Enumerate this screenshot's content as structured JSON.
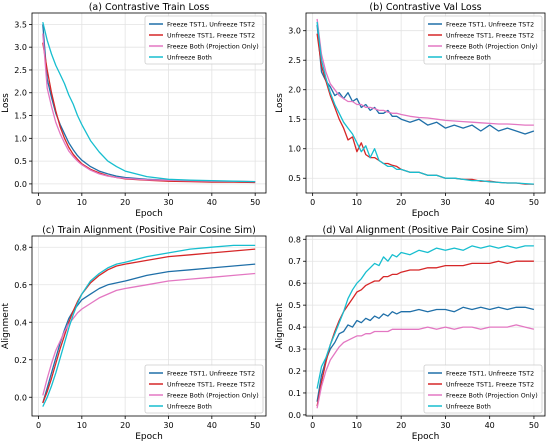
{
  "colors": {
    "series": [
      "#1f6fa8",
      "#d62728",
      "#e377c2",
      "#17becf"
    ],
    "grid": "#e3e3e3",
    "axis": "#000000"
  },
  "chart_data": [
    {
      "type": "line",
      "title": "(a) Contrastive Train Loss",
      "xlabel": "Epoch",
      "ylabel": "Loss",
      "xlim": [
        -1.5,
        52.5
      ],
      "ylim": [
        -0.2,
        3.75
      ],
      "xticks": [
        0,
        10,
        20,
        30,
        40,
        50
      ],
      "yticks": [
        0.0,
        0.5,
        1.0,
        1.5,
        2.0,
        2.5,
        3.0,
        3.5
      ],
      "ytick_labels": [
        "0.0",
        "0.5",
        "1.0",
        "1.5",
        "2.0",
        "2.5",
        "3.0",
        "3.5"
      ],
      "grid": true,
      "legend_position": "top-right",
      "x": [
        1,
        2,
        3,
        4,
        5,
        6,
        7,
        8,
        9,
        10,
        12,
        14,
        16,
        18,
        20,
        25,
        30,
        35,
        40,
        45,
        50
      ],
      "series": [
        {
          "name": "Freeze TST1, Unfreeze TST2",
          "values": [
            3.5,
            2.3,
            1.9,
            1.55,
            1.3,
            1.1,
            0.9,
            0.75,
            0.62,
            0.52,
            0.38,
            0.28,
            0.22,
            0.17,
            0.14,
            0.1,
            0.08,
            0.07,
            0.06,
            0.05,
            0.05
          ]
        },
        {
          "name": "Unfreeze TST1, Freeze TST2",
          "values": [
            3.1,
            2.5,
            2.0,
            1.6,
            1.25,
            1.0,
            0.8,
            0.65,
            0.54,
            0.44,
            0.32,
            0.24,
            0.18,
            0.14,
            0.11,
            0.08,
            0.06,
            0.05,
            0.04,
            0.04,
            0.03
          ]
        },
        {
          "name": "Freeze Both (Projection Only)",
          "values": [
            3.3,
            2.1,
            1.7,
            1.35,
            1.1,
            0.9,
            0.72,
            0.6,
            0.5,
            0.42,
            0.3,
            0.22,
            0.17,
            0.14,
            0.12,
            0.09,
            0.08,
            0.07,
            0.06,
            0.06,
            0.05
          ]
        },
        {
          "name": "Unfreeze Both",
          "values": [
            3.55,
            3.15,
            2.85,
            2.6,
            2.4,
            2.2,
            1.95,
            1.75,
            1.5,
            1.3,
            0.95,
            0.7,
            0.5,
            0.38,
            0.28,
            0.16,
            0.1,
            0.08,
            0.07,
            0.06,
            0.05
          ]
        }
      ]
    },
    {
      "type": "line",
      "title": "(b) Contrastive Val Loss",
      "xlabel": "Epoch",
      "ylabel": "Loss",
      "xlim": [
        -1.5,
        52.5
      ],
      "ylim": [
        0.25,
        3.3
      ],
      "xticks": [
        0,
        10,
        20,
        30,
        40,
        50
      ],
      "yticks": [
        0.5,
        1.0,
        1.5,
        2.0,
        2.5,
        3.0
      ],
      "ytick_labels": [
        "0.5",
        "1.0",
        "1.5",
        "2.0",
        "2.5",
        "3.0"
      ],
      "grid": true,
      "legend_position": "top-right",
      "x": [
        1,
        2,
        3,
        4,
        5,
        6,
        7,
        8,
        9,
        10,
        11,
        12,
        13,
        14,
        15,
        16,
        17,
        18,
        19,
        20,
        22,
        24,
        26,
        28,
        30,
        32,
        34,
        36,
        38,
        40,
        42,
        44,
        46,
        48,
        50
      ],
      "series": [
        {
          "name": "Freeze TST1, Unfreeze TST2",
          "values": [
            3.1,
            2.3,
            2.15,
            2.05,
            1.9,
            1.95,
            1.85,
            1.95,
            1.8,
            1.85,
            1.7,
            1.75,
            1.65,
            1.7,
            1.6,
            1.6,
            1.65,
            1.55,
            1.55,
            1.5,
            1.45,
            1.5,
            1.4,
            1.45,
            1.35,
            1.4,
            1.35,
            1.4,
            1.3,
            1.4,
            1.3,
            1.35,
            1.3,
            1.25,
            1.3
          ]
        },
        {
          "name": "Unfreeze TST1, Freeze TST2",
          "values": [
            2.95,
            2.4,
            2.15,
            1.9,
            1.7,
            1.5,
            1.35,
            1.15,
            1.2,
            0.95,
            1.1,
            0.9,
            0.85,
            0.85,
            0.8,
            0.75,
            0.75,
            0.72,
            0.7,
            0.65,
            0.6,
            0.6,
            0.55,
            0.55,
            0.5,
            0.5,
            0.48,
            0.48,
            0.45,
            0.45,
            0.43,
            0.42,
            0.42,
            0.4,
            0.4
          ]
        },
        {
          "name": "Freeze Both (Projection Only)",
          "values": [
            3.2,
            2.6,
            2.3,
            2.1,
            2.0,
            1.9,
            1.85,
            1.8,
            1.8,
            1.75,
            1.75,
            1.7,
            1.7,
            1.68,
            1.65,
            1.65,
            1.62,
            1.6,
            1.6,
            1.58,
            1.55,
            1.53,
            1.52,
            1.5,
            1.48,
            1.47,
            1.46,
            1.45,
            1.44,
            1.43,
            1.42,
            1.42,
            1.41,
            1.4,
            1.4
          ]
        },
        {
          "name": "Unfreeze Both",
          "values": [
            3.15,
            2.5,
            2.2,
            1.95,
            1.75,
            1.6,
            1.45,
            1.35,
            1.25,
            1.1,
            0.95,
            1.05,
            0.85,
            1.0,
            0.8,
            0.75,
            0.7,
            0.7,
            0.65,
            0.65,
            0.6,
            0.6,
            0.55,
            0.55,
            0.5,
            0.5,
            0.48,
            0.46,
            0.46,
            0.44,
            0.43,
            0.42,
            0.42,
            0.41,
            0.4
          ]
        }
      ]
    },
    {
      "type": "line",
      "title": "(c) Train Alignment (Positive Pair Cosine Sim)",
      "xlabel": "Epoch",
      "ylabel": "Alignment",
      "xlim": [
        -1.5,
        52.5
      ],
      "ylim": [
        -0.1,
        0.86
      ],
      "xticks": [
        0,
        10,
        20,
        30,
        40,
        50
      ],
      "yticks": [
        0.0,
        0.2,
        0.4,
        0.6,
        0.8
      ],
      "ytick_labels": [
        "0.0",
        "0.2",
        "0.4",
        "0.6",
        "0.8"
      ],
      "grid": true,
      "legend_position": "bottom-right",
      "x": [
        1,
        2,
        3,
        4,
        5,
        6,
        7,
        8,
        9,
        10,
        12,
        14,
        16,
        18,
        20,
        25,
        30,
        35,
        40,
        45,
        50
      ],
      "series": [
        {
          "name": "Freeze TST1, Unfreeze TST2",
          "values": [
            -0.03,
            0.05,
            0.13,
            0.21,
            0.29,
            0.36,
            0.42,
            0.46,
            0.49,
            0.52,
            0.55,
            0.58,
            0.6,
            0.61,
            0.62,
            0.65,
            0.67,
            0.68,
            0.69,
            0.7,
            0.71
          ]
        },
        {
          "name": "Unfreeze TST1, Freeze TST2",
          "values": [
            -0.03,
            0.03,
            0.1,
            0.18,
            0.26,
            0.33,
            0.4,
            0.46,
            0.51,
            0.55,
            0.61,
            0.65,
            0.68,
            0.7,
            0.71,
            0.73,
            0.75,
            0.76,
            0.77,
            0.78,
            0.79
          ]
        },
        {
          "name": "Freeze Both (Projection Only)",
          "values": [
            0.01,
            0.1,
            0.18,
            0.25,
            0.3,
            0.35,
            0.39,
            0.42,
            0.45,
            0.47,
            0.5,
            0.53,
            0.55,
            0.57,
            0.58,
            0.6,
            0.62,
            0.63,
            0.64,
            0.65,
            0.66
          ]
        },
        {
          "name": "Unfreeze Both",
          "values": [
            -0.05,
            0.0,
            0.06,
            0.13,
            0.21,
            0.29,
            0.37,
            0.44,
            0.5,
            0.55,
            0.62,
            0.66,
            0.69,
            0.71,
            0.72,
            0.75,
            0.77,
            0.79,
            0.8,
            0.81,
            0.81
          ]
        }
      ]
    },
    {
      "type": "line",
      "title": "(d) Val Alignment (Positive Pair Cosine Sim)",
      "xlabel": "Epoch",
      "ylabel": "Alignment",
      "xlim": [
        -1.5,
        52.5
      ],
      "ylim": [
        -0.005,
        0.815
      ],
      "xticks": [
        0,
        10,
        20,
        30,
        40,
        50
      ],
      "yticks": [
        0.0,
        0.1,
        0.2,
        0.3,
        0.4,
        0.5,
        0.6,
        0.7,
        0.8
      ],
      "ytick_labels": [
        "0.0",
        "0.1",
        "0.2",
        "0.3",
        "0.4",
        "0.5",
        "0.6",
        "0.7",
        "0.8"
      ],
      "grid": true,
      "legend_position": "bottom-right",
      "x": [
        1,
        2,
        3,
        4,
        5,
        6,
        7,
        8,
        9,
        10,
        11,
        12,
        13,
        14,
        15,
        16,
        17,
        18,
        19,
        20,
        22,
        24,
        26,
        28,
        30,
        32,
        34,
        36,
        38,
        40,
        42,
        44,
        46,
        48,
        50
      ],
      "series": [
        {
          "name": "Freeze TST1, Unfreeze TST2",
          "values": [
            0.06,
            0.18,
            0.25,
            0.3,
            0.33,
            0.37,
            0.38,
            0.41,
            0.4,
            0.43,
            0.42,
            0.44,
            0.43,
            0.45,
            0.44,
            0.46,
            0.45,
            0.47,
            0.46,
            0.47,
            0.47,
            0.48,
            0.47,
            0.48,
            0.48,
            0.47,
            0.49,
            0.48,
            0.49,
            0.48,
            0.49,
            0.48,
            0.49,
            0.49,
            0.48
          ]
        },
        {
          "name": "Unfreeze TST1, Freeze TST2",
          "values": [
            0.04,
            0.15,
            0.24,
            0.32,
            0.38,
            0.43,
            0.47,
            0.5,
            0.53,
            0.56,
            0.57,
            0.59,
            0.6,
            0.61,
            0.61,
            0.63,
            0.63,
            0.64,
            0.64,
            0.65,
            0.66,
            0.66,
            0.67,
            0.67,
            0.68,
            0.68,
            0.68,
            0.69,
            0.69,
            0.69,
            0.7,
            0.69,
            0.7,
            0.7,
            0.7
          ]
        },
        {
          "name": "Freeze Both (Projection Only)",
          "values": [
            0.03,
            0.13,
            0.2,
            0.25,
            0.28,
            0.31,
            0.33,
            0.34,
            0.35,
            0.36,
            0.36,
            0.37,
            0.37,
            0.38,
            0.38,
            0.38,
            0.38,
            0.39,
            0.39,
            0.39,
            0.39,
            0.39,
            0.4,
            0.39,
            0.4,
            0.39,
            0.4,
            0.4,
            0.39,
            0.4,
            0.4,
            0.4,
            0.41,
            0.4,
            0.39
          ]
        },
        {
          "name": "Unfreeze Both",
          "values": [
            0.12,
            0.22,
            0.26,
            0.32,
            0.37,
            0.42,
            0.47,
            0.53,
            0.57,
            0.6,
            0.62,
            0.65,
            0.67,
            0.69,
            0.68,
            0.72,
            0.7,
            0.73,
            0.72,
            0.74,
            0.73,
            0.75,
            0.74,
            0.76,
            0.75,
            0.76,
            0.75,
            0.77,
            0.76,
            0.77,
            0.76,
            0.77,
            0.76,
            0.77,
            0.77
          ]
        }
      ]
    }
  ]
}
